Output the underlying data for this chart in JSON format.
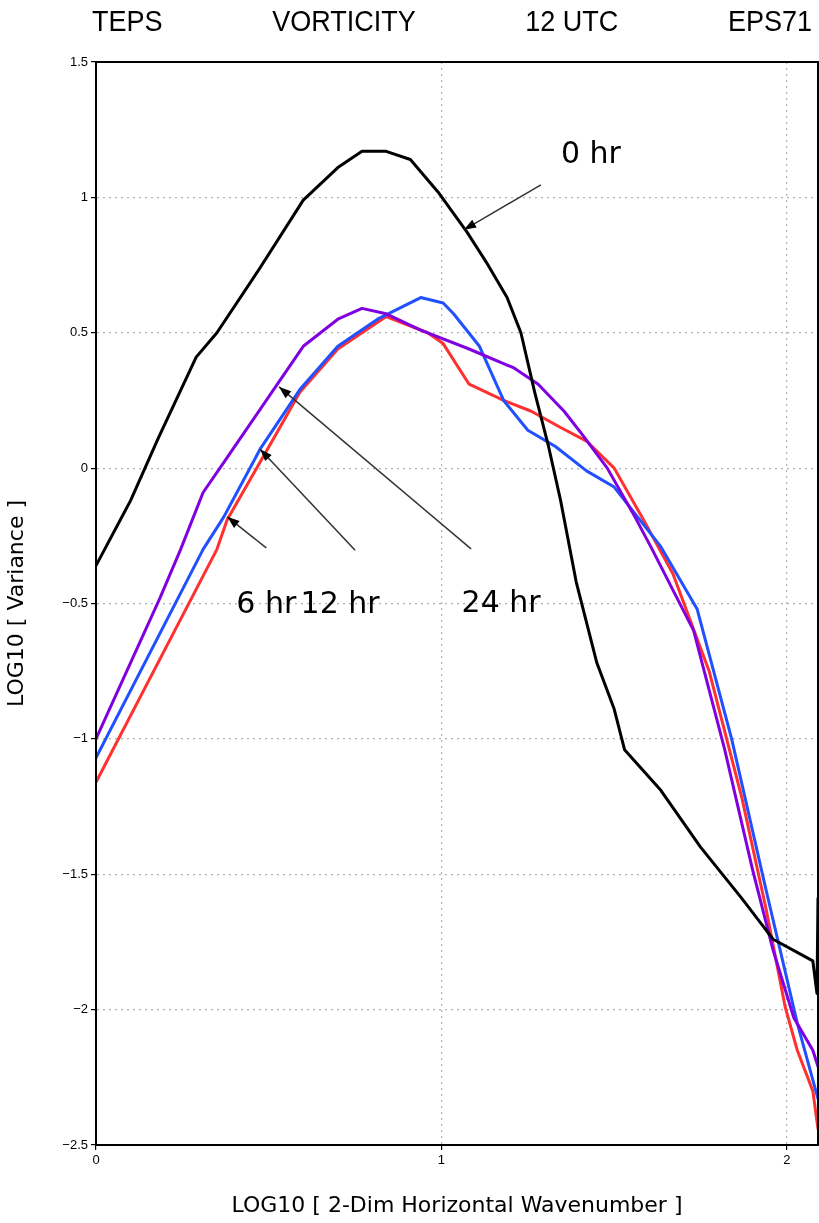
{
  "chart_data": {
    "type": "line",
    "title": "TEPS  VORTICITY  12 UTC  EPS71",
    "xlabel": "LOG10 [ 2-Dim Horizontal Wavenumber ]",
    "ylabel": "LOG10 [ Variance ]",
    "xlim": [
      0,
      2.09
    ],
    "xticks": [
      0,
      1,
      2
    ],
    "ylim": [
      -2.5,
      1.5
    ],
    "yticks": [
      -2.5,
      -2,
      -1.5,
      -1,
      -0.5,
      0,
      0.5,
      1,
      1.5
    ],
    "grid": true,
    "legend": false,
    "marker": "none",
    "line_style": "solid",
    "series": [
      {
        "color": "#000000",
        "x": [
          0,
          0.1,
          0.18,
          0.29,
          0.35,
          0.475,
          0.6,
          0.7,
          0.77,
          0.84,
          0.91,
          0.99,
          1.075,
          1.13,
          1.19,
          1.23,
          1.27,
          1.31,
          1.345,
          1.39,
          1.45,
          1.5,
          1.53,
          1.635,
          1.75,
          1.87,
          1.96,
          2.075,
          2.087,
          2.09
        ],
        "values": [
          -0.36,
          -0.12,
          0.11,
          0.41,
          0.5,
          0.74,
          0.99,
          1.11,
          1.17,
          1.17,
          1.14,
          1.02,
          0.87,
          0.76,
          0.63,
          0.5,
          0.28,
          0.08,
          -0.12,
          -0.42,
          -0.72,
          -0.89,
          -1.04,
          -1.19,
          -1.4,
          -1.59,
          -1.74,
          -1.82,
          -1.94,
          -1.59
        ]
      },
      {
        "color": "#8000e0",
        "x": [
          0,
          0.185,
          0.245,
          0.31,
          0.38,
          0.525,
          0.6,
          0.7,
          0.77,
          0.84,
          0.94,
          1.08,
          1.21,
          1.28,
          1.355,
          1.41,
          1.48,
          1.56,
          1.61,
          1.73,
          1.82,
          1.9,
          1.96,
          2.02,
          2.075,
          2.09
        ],
        "values": [
          -1.0,
          -0.48,
          -0.3,
          -0.09,
          0.04,
          0.31,
          0.45,
          0.55,
          0.59,
          0.57,
          0.51,
          0.44,
          0.37,
          0.31,
          0.21,
          0.12,
          0.0,
          -0.18,
          -0.3,
          -0.6,
          -1.04,
          -1.48,
          -1.78,
          -2.03,
          -2.15,
          -2.21
        ]
      },
      {
        "color": "#2050ff",
        "x": [
          0,
          0.31,
          0.37,
          0.475,
          0.59,
          0.7,
          0.815,
          0.94,
          1.005,
          1.035,
          1.11,
          1.18,
          1.25,
          1.33,
          1.42,
          1.5,
          1.635,
          1.74,
          1.84,
          1.94,
          2.03,
          2.09
        ],
        "values": [
          -1.07,
          -0.3,
          -0.18,
          0.07,
          0.29,
          0.45,
          0.55,
          0.63,
          0.61,
          0.57,
          0.45,
          0.25,
          0.14,
          0.08,
          -0.01,
          -0.07,
          -0.29,
          -0.52,
          -1.0,
          -1.56,
          -2.05,
          -2.33
        ]
      },
      {
        "color": "#ff3030",
        "x": [
          0,
          0.35,
          0.38,
          0.51,
          0.59,
          0.7,
          0.84,
          0.96,
          1.005,
          1.08,
          1.18,
          1.26,
          1.345,
          1.42,
          1.5,
          1.58,
          1.67,
          1.775,
          1.87,
          1.94,
          1.995,
          2.03,
          2.075,
          2.09
        ],
        "values": [
          -1.16,
          -0.3,
          -0.19,
          0.1,
          0.28,
          0.44,
          0.56,
          0.5,
          0.46,
          0.31,
          0.25,
          0.21,
          0.15,
          0.1,
          0.0,
          -0.18,
          -0.39,
          -0.75,
          -1.22,
          -1.63,
          -1.99,
          -2.15,
          -2.3,
          -2.44
        ]
      }
    ],
    "annotations": [
      {
        "text": "0 hr",
        "x": 1.065,
        "y": 0.88
      },
      {
        "text": "6 hr",
        "x": 0.38,
        "y": -0.18
      },
      {
        "text": "12 hr",
        "x": 0.475,
        "y": 0.07
      },
      {
        "text": "24 hr",
        "x": 0.53,
        "y": 0.3
      }
    ]
  }
}
